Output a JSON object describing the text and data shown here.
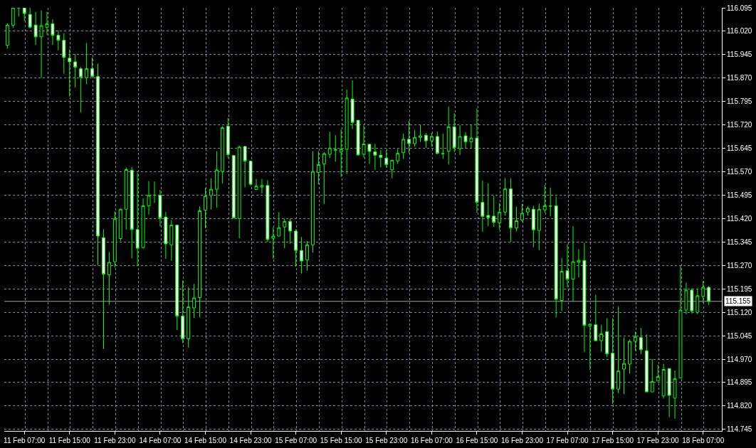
{
  "chart_data": {
    "type": "candlestick",
    "categories": [
      null,
      null,
      null,
      "11 Feb 07:00",
      null,
      null,
      null,
      null,
      null,
      null,
      null,
      "11 Feb 15:00",
      null,
      null,
      null,
      null,
      null,
      null,
      null,
      "11 Feb 23:00",
      null,
      null,
      null,
      null,
      null,
      null,
      null,
      "14 Feb 07:00",
      null,
      null,
      null,
      null,
      null,
      null,
      null,
      "14 Feb 15:00",
      null,
      null,
      null,
      null,
      null,
      null,
      null,
      "14 Feb 23:00",
      null,
      null,
      null,
      null,
      null,
      null,
      null,
      "15 Feb 07:00",
      null,
      null,
      null,
      null,
      null,
      null,
      null,
      "15 Feb 15:00",
      null,
      null,
      null,
      null,
      null,
      null,
      null,
      "15 Feb 23:00",
      null,
      null,
      null,
      null,
      null,
      null,
      null,
      "16 Feb 07:00",
      null,
      null,
      null,
      null,
      null,
      null,
      null,
      "16 Feb 15:00",
      null,
      null,
      null,
      null,
      null,
      null,
      null,
      "16 Feb 23:00",
      null,
      null,
      null,
      null,
      null,
      null,
      null,
      "17 Feb 07:00",
      null,
      null,
      null,
      null,
      null,
      null,
      null,
      "17 Feb 15:00",
      null,
      null,
      null,
      null,
      null,
      null,
      null,
      "17 Feb 23:00",
      null,
      null,
      null,
      null,
      null,
      null,
      null,
      "18 Feb 07:00",
      null
    ],
    "ohlc": [
      [
        115.975,
        116.045,
        115.964,
        116.04
      ],
      [
        116.039,
        116.095,
        116.03,
        116.095
      ],
      [
        116.095,
        116.095,
        116.067,
        116.095
      ],
      [
        116.095,
        116.095,
        116.053,
        116.077
      ],
      [
        116.074,
        116.095,
        116.029,
        116.033
      ],
      [
        116.04,
        116.082,
        115.976,
        116.002
      ],
      [
        116.002,
        116.087,
        115.871,
        116.038
      ],
      [
        116.033,
        116.082,
        116.008,
        116.044
      ],
      [
        116.044,
        116.058,
        115.976,
        116.007
      ],
      [
        116.007,
        116.023,
        115.959,
        115.991
      ],
      [
        115.991,
        116.014,
        115.884,
        115.936
      ],
      [
        115.934,
        115.962,
        115.811,
        115.922
      ],
      [
        115.922,
        115.947,
        115.84,
        115.905
      ],
      [
        115.9,
        115.905,
        115.76,
        115.873
      ],
      [
        115.871,
        115.982,
        115.851,
        115.9
      ],
      [
        115.9,
        115.936,
        115.874,
        115.875
      ],
      [
        115.875,
        115.916,
        115.271,
        115.364
      ],
      [
        115.359,
        115.386,
        115.002,
        115.242
      ],
      [
        115.24,
        115.313,
        115.144,
        115.28
      ],
      [
        115.282,
        115.443,
        115.263,
        115.419
      ],
      [
        115.356,
        115.452,
        115.347,
        115.45
      ],
      [
        115.45,
        115.583,
        115.385,
        115.577
      ],
      [
        115.575,
        115.585,
        115.293,
        115.385
      ],
      [
        115.385,
        115.568,
        115.267,
        115.325
      ],
      [
        115.327,
        115.485,
        115.324,
        115.461
      ],
      [
        115.461,
        115.54,
        115.433,
        115.494
      ],
      [
        115.495,
        115.539,
        115.47,
        115.495
      ],
      [
        115.495,
        115.512,
        115.395,
        115.422
      ],
      [
        115.425,
        115.441,
        115.291,
        115.339
      ],
      [
        115.336,
        115.415,
        115.285,
        115.399
      ],
      [
        115.399,
        115.4,
        115.063,
        115.108
      ],
      [
        115.108,
        115.222,
        115.021,
        115.035
      ],
      [
        115.035,
        115.2,
        115.007,
        115.137
      ],
      [
        115.134,
        115.211,
        115.102,
        115.166
      ],
      [
        115.167,
        115.459,
        115.104,
        115.445
      ],
      [
        115.447,
        115.518,
        115.389,
        115.492
      ],
      [
        115.494,
        115.549,
        115.449,
        115.514
      ],
      [
        115.514,
        115.636,
        115.455,
        115.576
      ],
      [
        115.571,
        115.716,
        115.532,
        115.711
      ],
      [
        115.716,
        115.742,
        115.614,
        115.625
      ],
      [
        115.622,
        115.623,
        115.42,
        115.422
      ],
      [
        115.42,
        115.654,
        115.357,
        115.649
      ],
      [
        115.651,
        115.653,
        115.52,
        115.604
      ],
      [
        115.604,
        115.606,
        115.525,
        115.53
      ],
      [
        115.513,
        115.547,
        115.513,
        115.524
      ],
      [
        115.521,
        115.547,
        115.5,
        115.526
      ],
      [
        115.526,
        115.543,
        115.345,
        115.353
      ],
      [
        115.357,
        115.392,
        115.291,
        115.364
      ],
      [
        115.364,
        115.441,
        115.364,
        115.391
      ],
      [
        115.393,
        115.42,
        115.325,
        115.411
      ],
      [
        115.411,
        115.42,
        115.339,
        115.38
      ],
      [
        115.38,
        115.386,
        115.266,
        115.318
      ],
      [
        115.318,
        115.361,
        115.244,
        115.284
      ],
      [
        115.288,
        115.348,
        115.253,
        115.336
      ],
      [
        115.336,
        115.636,
        115.311,
        115.571
      ],
      [
        115.568,
        115.636,
        115.53,
        115.593
      ],
      [
        115.595,
        115.633,
        115.467,
        115.628
      ],
      [
        115.626,
        115.698,
        115.614,
        115.646
      ],
      [
        115.639,
        115.687,
        115.602,
        115.641
      ],
      [
        115.633,
        115.706,
        115.554,
        115.642
      ],
      [
        115.642,
        115.833,
        115.563,
        115.806
      ],
      [
        115.803,
        115.863,
        115.707,
        115.728
      ],
      [
        115.735,
        115.735,
        115.621,
        115.624
      ],
      [
        115.626,
        115.717,
        115.615,
        115.659
      ],
      [
        115.658,
        115.66,
        115.595,
        115.635
      ],
      [
        115.634,
        115.659,
        115.576,
        115.623
      ],
      [
        115.623,
        115.64,
        115.584,
        115.616
      ],
      [
        115.614,
        115.64,
        115.584,
        115.593
      ],
      [
        115.576,
        115.607,
        115.549,
        115.607
      ],
      [
        115.605,
        115.643,
        115.595,
        115.629
      ],
      [
        115.631,
        115.692,
        115.611,
        115.674
      ],
      [
        115.674,
        115.733,
        115.629,
        115.66
      ],
      [
        115.66,
        115.703,
        115.651,
        115.68
      ],
      [
        115.68,
        115.72,
        115.666,
        115.685
      ],
      [
        115.687,
        115.694,
        115.646,
        115.669
      ],
      [
        115.669,
        115.695,
        115.651,
        115.683
      ],
      [
        115.683,
        115.699,
        115.626,
        115.629
      ],
      [
        115.628,
        115.692,
        115.611,
        115.628
      ],
      [
        115.636,
        115.779,
        115.593,
        115.714
      ],
      [
        115.714,
        115.758,
        115.632,
        115.647
      ],
      [
        115.644,
        115.719,
        115.624,
        115.683
      ],
      [
        115.685,
        115.697,
        115.644,
        115.666
      ],
      [
        115.666,
        115.72,
        115.644,
        115.678
      ],
      [
        115.678,
        115.773,
        115.439,
        115.472
      ],
      [
        115.472,
        115.542,
        115.378,
        115.427
      ],
      [
        115.43,
        115.533,
        115.396,
        115.423
      ],
      [
        115.428,
        115.493,
        115.393,
        115.408
      ],
      [
        115.406,
        115.47,
        115.385,
        115.441
      ],
      [
        115.441,
        115.55,
        115.43,
        115.515
      ],
      [
        115.515,
        115.549,
        115.346,
        115.39
      ],
      [
        115.39,
        115.458,
        115.379,
        115.413
      ],
      [
        115.415,
        115.467,
        115.41,
        115.437
      ],
      [
        115.441,
        115.459,
        115.43,
        115.453
      ],
      [
        115.45,
        115.461,
        115.328,
        115.384
      ],
      [
        115.382,
        115.468,
        115.319,
        115.45
      ],
      [
        115.448,
        115.528,
        115.439,
        115.461
      ],
      [
        115.46,
        115.519,
        115.427,
        115.46
      ],
      [
        115.461,
        115.491,
        115.104,
        115.162
      ],
      [
        115.158,
        115.294,
        115.124,
        115.251
      ],
      [
        115.253,
        115.338,
        115.2,
        115.226
      ],
      [
        115.226,
        115.396,
        115.155,
        115.282
      ],
      [
        115.28,
        115.322,
        115.232,
        115.286
      ],
      [
        115.286,
        115.342,
        114.993,
        115.078
      ],
      [
        115.076,
        115.082,
        114.935,
        115.082
      ],
      [
        115.08,
        115.176,
        115.027,
        115.029
      ],
      [
        115.029,
        115.08,
        114.994,
        115.051
      ],
      [
        115.058,
        115.101,
        114.977,
        114.987
      ],
      [
        114.989,
        115.101,
        114.827,
        114.874
      ],
      [
        114.874,
        115.138,
        114.861,
        114.932
      ],
      [
        114.938,
        115.039,
        114.858,
        114.956
      ],
      [
        114.954,
        115.033,
        114.924,
        115.027
      ],
      [
        115.027,
        115.058,
        114.996,
        115.042
      ],
      [
        115.039,
        115.07,
        114.986,
        115.0
      ],
      [
        114.997,
        115.049,
        114.865,
        114.865
      ],
      [
        114.865,
        114.97,
        114.865,
        114.898
      ],
      [
        114.9,
        114.952,
        114.9,
        114.914
      ],
      [
        114.852,
        114.955,
        114.844,
        114.937
      ],
      [
        114.94,
        114.94,
        114.784,
        114.854
      ],
      [
        114.845,
        114.934,
        114.779,
        114.907
      ],
      [
        114.909,
        115.269,
        114.909,
        115.127
      ],
      [
        115.127,
        115.215,
        115.113,
        115.191
      ],
      [
        115.191,
        115.197,
        115.116,
        115.124
      ],
      [
        115.12,
        115.194,
        115.114,
        115.173
      ],
      [
        115.171,
        115.22,
        115.15,
        115.2
      ],
      [
        115.2,
        115.204,
        115.143,
        115.155
      ]
    ],
    "color": "#00ff00",
    "ylim": [
      114.74,
      116.095
    ],
    "yticks": [
      114.745,
      {
        "value": 114.82,
        "label": "114.820"
      },
      114.895,
      {
        "value": 114.97,
        "label": "114.970"
      },
      115.045,
      {
        "value": 115.12,
        "label": "115.120"
      },
      115.195,
      {
        "value": 115.27,
        "label": "115.270"
      },
      115.345,
      {
        "value": 115.42,
        "label": "115.420"
      },
      115.495,
      {
        "value": 115.57,
        "label": "115.570"
      },
      115.645,
      {
        "value": 115.72,
        "label": "115.720"
      },
      115.795,
      {
        "value": 115.87,
        "label": "115.870"
      },
      115.945,
      {
        "value": 116.02,
        "label": "116.020"
      },
      116.095
    ],
    "grid": true,
    "ref_lines": [
      {
        "axis": "y",
        "value": 115.155,
        "label": "115.155",
        "color": "#a0a0a0"
      }
    ]
  }
}
